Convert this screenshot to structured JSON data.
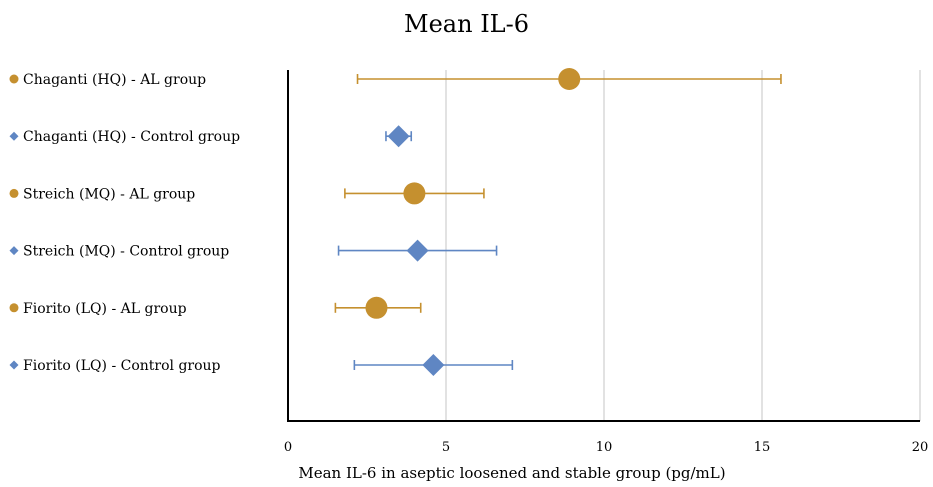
{
  "chart_data": {
    "type": "scatter",
    "title": "Mean IL-6",
    "xlabel": "Mean IL-6 in aseptic loosened and stable group (pg/mL)",
    "ylabel": "",
    "xlim": [
      0,
      20
    ],
    "xticks": [
      0,
      5,
      10,
      15,
      20
    ],
    "xtick_labels": [
      "0",
      "5",
      "10",
      "15",
      "20"
    ],
    "grid": "vertical",
    "legend_position": "left",
    "colors": {
      "al_group": "#c5902f",
      "control_group": "#5f86c3"
    },
    "series": [
      {
        "name": "Chaganti (HQ) - AL group",
        "marker": "circle",
        "color": "#c5902f",
        "mean": 8.9,
        "ci_low": 2.2,
        "ci_high": 15.6
      },
      {
        "name": "Chaganti (HQ) - Control group",
        "marker": "diamond",
        "color": "#5f86c3",
        "mean": 3.5,
        "ci_low": 3.1,
        "ci_high": 3.9
      },
      {
        "name": "Streich (MQ) - AL group",
        "marker": "circle",
        "color": "#c5902f",
        "mean": 4.0,
        "ci_low": 1.8,
        "ci_high": 6.2
      },
      {
        "name": "Streich (MQ) - Control group",
        "marker": "diamond",
        "color": "#5f86c3",
        "mean": 4.1,
        "ci_low": 1.6,
        "ci_high": 6.6
      },
      {
        "name": "Fiorito (LQ) - AL group",
        "marker": "circle",
        "color": "#c5902f",
        "mean": 2.8,
        "ci_low": 1.5,
        "ci_high": 4.2
      },
      {
        "name": "Fiorito (LQ) - Control group",
        "marker": "diamond",
        "color": "#5f86c3",
        "mean": 4.6,
        "ci_low": 2.1,
        "ci_high": 7.1
      }
    ]
  }
}
